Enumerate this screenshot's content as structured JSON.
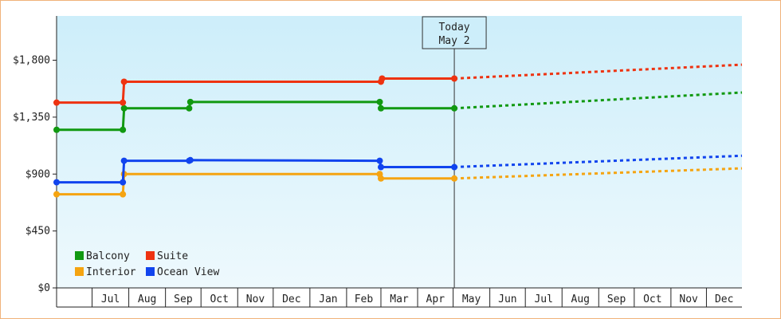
{
  "chart_data": {
    "type": "line",
    "step": true,
    "title": "",
    "xlabel": "",
    "ylabel": "",
    "ylim": [
      0,
      2150
    ],
    "y_ticks": [
      0,
      450,
      900,
      1350,
      1800
    ],
    "y_tick_labels": [
      "$0",
      "$450",
      "$900",
      "$1,350",
      "$1,800"
    ],
    "x_range": [
      "2023-06-01",
      "2024-12-31"
    ],
    "month_labels": [
      {
        "label": "Jul",
        "start": "2023-07-01",
        "end": "2023-08-01"
      },
      {
        "label": "Aug",
        "start": "2023-08-01",
        "end": "2023-09-01"
      },
      {
        "label": "Sep",
        "start": "2023-09-01",
        "end": "2023-10-01"
      },
      {
        "label": "Oct",
        "start": "2023-10-01",
        "end": "2023-11-01"
      },
      {
        "label": "Nov",
        "start": "2023-11-01",
        "end": "2023-12-01"
      },
      {
        "label": "Dec",
        "start": "2023-12-01",
        "end": "2024-01-01"
      },
      {
        "label": "Jan",
        "start": "2024-01-01",
        "end": "2024-02-01"
      },
      {
        "label": "Feb",
        "start": "2024-02-01",
        "end": "2024-03-01"
      },
      {
        "label": "Mar",
        "start": "2024-03-01",
        "end": "2024-04-01"
      },
      {
        "label": "Apr",
        "start": "2024-04-01",
        "end": "2024-05-01"
      },
      {
        "label": "May",
        "start": "2024-05-01",
        "end": "2024-06-01"
      },
      {
        "label": "Jun",
        "start": "2024-06-01",
        "end": "2024-07-01"
      },
      {
        "label": "Jul",
        "start": "2024-07-01",
        "end": "2024-08-01"
      },
      {
        "label": "Aug",
        "start": "2024-08-01",
        "end": "2024-09-01"
      },
      {
        "label": "Sep",
        "start": "2024-09-01",
        "end": "2024-10-01"
      },
      {
        "label": "Oct",
        "start": "2024-10-01",
        "end": "2024-11-01"
      },
      {
        "label": "Nov",
        "start": "2024-11-01",
        "end": "2024-12-01"
      },
      {
        "label": "Dec",
        "start": "2024-12-01",
        "end": "2025-01-01"
      }
    ],
    "today": {
      "date": "2024-05-02",
      "label_line1": "Today",
      "label_line2": "May 2"
    },
    "legend": {
      "position": "bottom-left"
    },
    "series": [
      {
        "name": "Balcony",
        "color": "#119911",
        "points": [
          {
            "x": "2023-06-01",
            "y": 1250
          },
          {
            "x": "2023-07-27",
            "y": 1250
          },
          {
            "x": "2023-07-28",
            "y": 1420
          },
          {
            "x": "2023-09-21",
            "y": 1420
          },
          {
            "x": "2023-09-22",
            "y": 1470
          },
          {
            "x": "2024-02-29",
            "y": 1470
          },
          {
            "x": "2024-03-01",
            "y": 1420
          },
          {
            "x": "2024-05-02",
            "y": 1420
          }
        ],
        "forecast": [
          {
            "x": "2024-05-02",
            "y": 1420
          },
          {
            "x": "2024-12-31",
            "y": 1545
          }
        ]
      },
      {
        "name": "Suite",
        "color": "#ee3311",
        "points": [
          {
            "x": "2023-06-01",
            "y": 1465
          },
          {
            "x": "2023-07-27",
            "y": 1465
          },
          {
            "x": "2023-07-28",
            "y": 1630
          },
          {
            "x": "2024-03-01",
            "y": 1630
          },
          {
            "x": "2024-03-02",
            "y": 1655
          },
          {
            "x": "2024-05-02",
            "y": 1655
          }
        ],
        "forecast": [
          {
            "x": "2024-05-02",
            "y": 1655
          },
          {
            "x": "2024-12-31",
            "y": 1765
          }
        ]
      },
      {
        "name": "Interior",
        "color": "#f5a411",
        "points": [
          {
            "x": "2023-06-01",
            "y": 740
          },
          {
            "x": "2023-07-27",
            "y": 740
          },
          {
            "x": "2023-07-28",
            "y": 900
          },
          {
            "x": "2024-02-29",
            "y": 900
          },
          {
            "x": "2024-03-01",
            "y": 865
          },
          {
            "x": "2024-05-02",
            "y": 865
          }
        ],
        "forecast": [
          {
            "x": "2024-05-02",
            "y": 865
          },
          {
            "x": "2024-12-31",
            "y": 945
          }
        ]
      },
      {
        "name": "Ocean View",
        "color": "#1144ee",
        "points": [
          {
            "x": "2023-06-01",
            "y": 835
          },
          {
            "x": "2023-07-27",
            "y": 835
          },
          {
            "x": "2023-07-28",
            "y": 1005
          },
          {
            "x": "2023-09-21",
            "y": 1005
          },
          {
            "x": "2023-09-22",
            "y": 1010
          },
          {
            "x": "2024-02-29",
            "y": 1005
          },
          {
            "x": "2024-03-01",
            "y": 955
          },
          {
            "x": "2024-05-02",
            "y": 955
          }
        ],
        "forecast": [
          {
            "x": "2024-05-02",
            "y": 955
          },
          {
            "x": "2024-12-31",
            "y": 1045
          }
        ]
      }
    ]
  }
}
